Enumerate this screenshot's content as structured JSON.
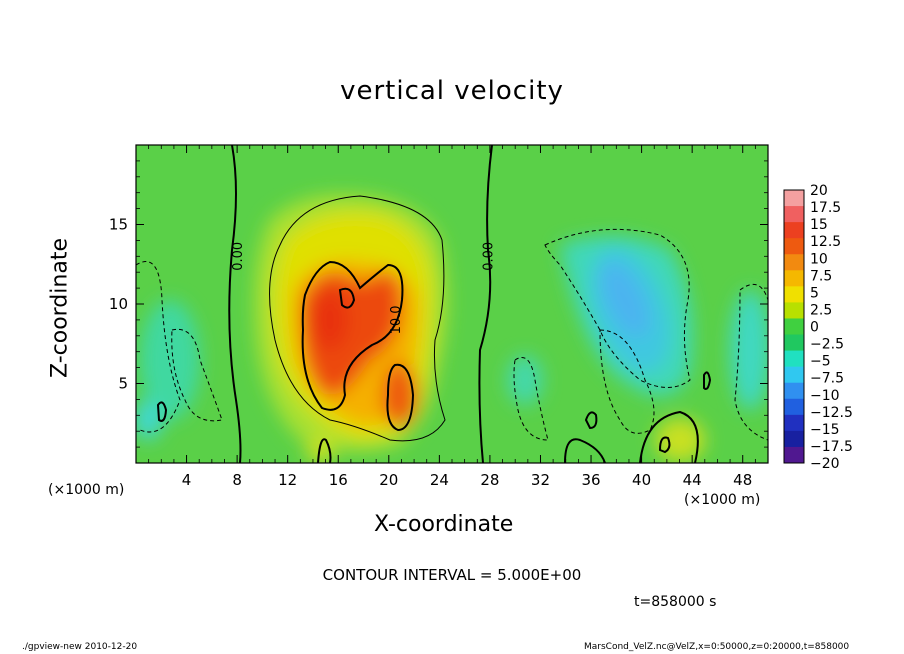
{
  "chart_data": {
    "type": "heatmap",
    "title": "vertical velocity",
    "xlabel": "X-coordinate",
    "ylabel": "Z-coordinate",
    "x_unit_left": "(×1000 m)",
    "x_unit_right": "(×1000 m)",
    "xlim": [
      0,
      50
    ],
    "ylim": [
      0,
      20
    ],
    "x_ticks": [
      "4",
      "8",
      "12",
      "16",
      "20",
      "24",
      "28",
      "32",
      "36",
      "40",
      "44",
      "48"
    ],
    "x_tick_values": [
      4,
      8,
      12,
      16,
      20,
      24,
      28,
      32,
      36,
      40,
      44,
      48
    ],
    "y_ticks": [
      "5",
      "10",
      "15"
    ],
    "y_tick_values": [
      5,
      10,
      15
    ],
    "contour_labels": [
      {
        "text": "0.00",
        "x": 8,
        "z": 13
      },
      {
        "text": "10.0",
        "x": 20.5,
        "z": 9
      },
      {
        "text": "0.00",
        "x": 27.8,
        "z": 13
      }
    ],
    "colorbar": {
      "labels": [
        "20",
        "17.5",
        "15",
        "12.5",
        "10",
        "7.5",
        "5",
        "2.5",
        "0",
        "−2.5",
        "−5",
        "−7.5",
        "−10",
        "−12.5",
        "−15",
        "−17.5",
        "−20"
      ],
      "colors": [
        "#f4a0a0",
        "#f06060",
        "#ec4020",
        "#ee5a10",
        "#f28a10",
        "#f5b800",
        "#f0e000",
        "#b8e000",
        "#40d040",
        "#20c860",
        "#20e0c0",
        "#30c8f0",
        "#3090f0",
        "#2060e0",
        "#2030c0",
        "#1820a0",
        "#501890"
      ]
    },
    "features": [
      {
        "name": "updraft-main",
        "x": 16.5,
        "z": 8.0,
        "w_max": 15
      },
      {
        "name": "updraft-lower",
        "x": 21.0,
        "z": 4.0,
        "w_max": 15
      },
      {
        "name": "downdraft-right",
        "x": 39.0,
        "z": 10.5,
        "w_min": -10
      },
      {
        "name": "downdraft-left",
        "x": 3.5,
        "z": 6.0,
        "w_min": -6
      }
    ],
    "grid": false
  },
  "contour_interval": "CONTOUR INTERVAL = 5.000E+00",
  "time_label": "t=858000 s",
  "footer_left": "./gpview-new  2010-12-20",
  "footer_right": "MarsCond_VelZ.nc@VelZ,x=0:50000,z=0:20000,t=858000"
}
